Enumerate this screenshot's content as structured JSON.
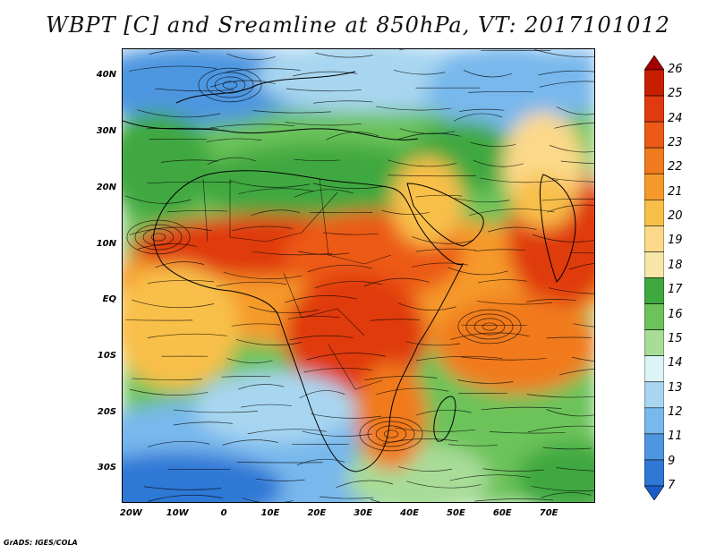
{
  "title": "WBPT [C] and Sreamline at 850hPa, VT: 2017101012",
  "map": {
    "lat_ticks": [
      "40N",
      "30N",
      "20N",
      "10N",
      "EQ",
      "10S",
      "20S",
      "30S"
    ],
    "lon_ticks": [
      "20W",
      "10W",
      "0",
      "10E",
      "20E",
      "30E",
      "40E",
      "50E",
      "60E",
      "70E"
    ],
    "lon_range_deg": [
      -22,
      80
    ],
    "lat_range_deg": [
      -36,
      45
    ],
    "lat_values": [
      40,
      30,
      20,
      10,
      0,
      -10,
      -20,
      -30
    ],
    "lon_values": [
      -20,
      -10,
      0,
      10,
      20,
      30,
      40,
      50,
      60,
      70
    ]
  },
  "colorbar": {
    "labels": [
      "26",
      "25",
      "24",
      "23",
      "22",
      "21",
      "20",
      "19",
      "18",
      "17",
      "16",
      "15",
      "14",
      "13",
      "12",
      "11",
      "9",
      "7"
    ],
    "colors": [
      "#a40000",
      "#c81e00",
      "#e03a10",
      "#ec5a18",
      "#f17a1e",
      "#f59a2a",
      "#f8bf48",
      "#fcd98a",
      "#f7e6a8",
      "#3fa83f",
      "#6cc35a",
      "#a8dc98",
      "#dcf3f8",
      "#a8d6f0",
      "#78b8ec",
      "#4e96e0",
      "#2f78d6",
      "#1c5cc8"
    ]
  },
  "footer": "GrADS: IGES/COLA"
}
